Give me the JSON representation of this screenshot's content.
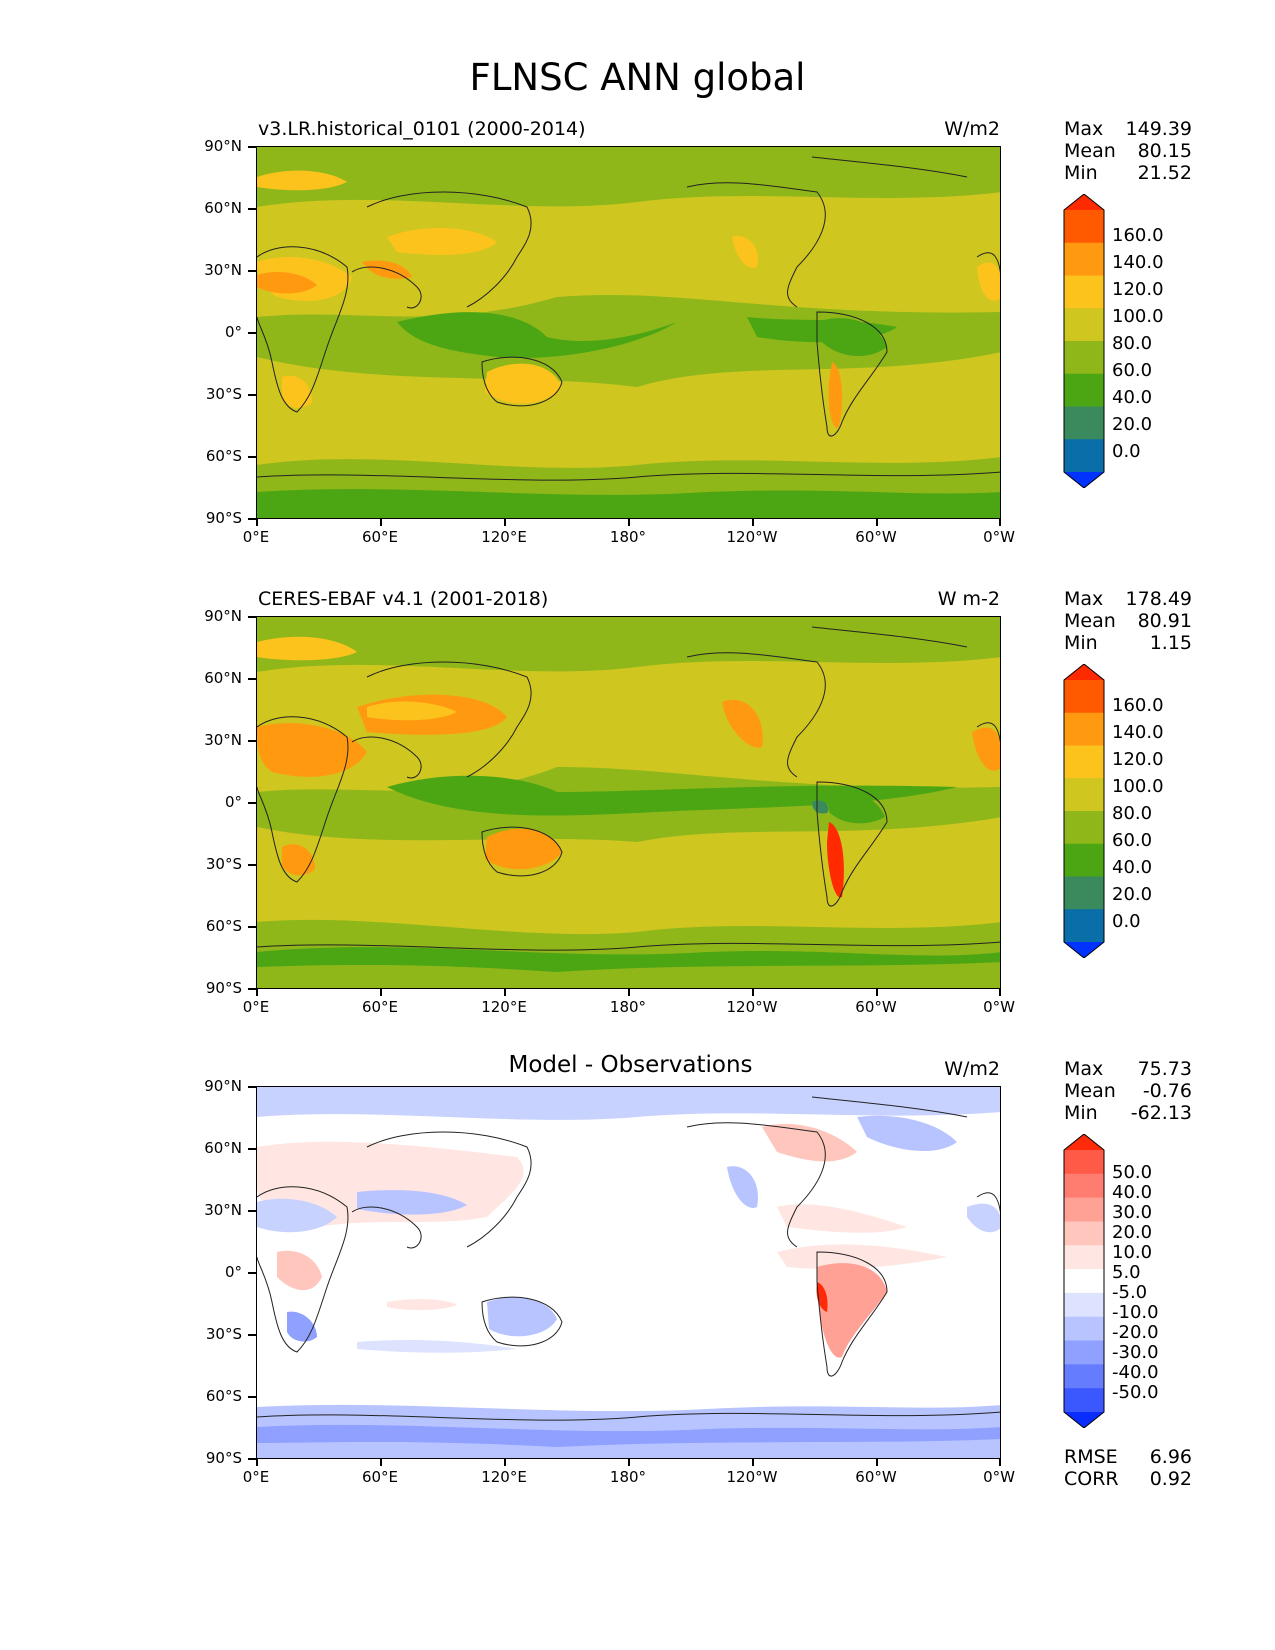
{
  "title": "FLNSC ANN global",
  "axis": {
    "lat_labels": [
      "90°N",
      "60°N",
      "30°N",
      "0°",
      "30°S",
      "60°S",
      "90°S"
    ],
    "lon_labels": [
      "0°E",
      "60°E",
      "120°E",
      "180°",
      "120°W",
      "60°W",
      "0°W"
    ]
  },
  "panels": [
    {
      "left_label": "v3.LR.historical_0101 (2000-2014)",
      "center_label": "",
      "units": "W/m2",
      "stats": [
        {
          "name": "Max",
          "value": "149.39"
        },
        {
          "name": "Mean",
          "value": "80.15"
        },
        {
          "name": "Min",
          "value": "21.52"
        }
      ],
      "colorbar": {
        "labels": [
          "160.0",
          "140.0",
          "120.0",
          "100.0",
          "80.0",
          "60.0",
          "40.0",
          "20.0",
          "0.0"
        ],
        "colors": [
          "#ff2a00",
          "#ff5a00",
          "#ff9a10",
          "#fdc31d",
          "#cfc620",
          "#8fb71a",
          "#4ca614",
          "#3b8a5e",
          "#0a6ea8",
          "#0033ff"
        ]
      }
    },
    {
      "left_label": "CERES-EBAF v4.1 (2001-2018)",
      "center_label": "",
      "units": "W m-2",
      "stats": [
        {
          "name": "Max",
          "value": "178.49"
        },
        {
          "name": "Mean",
          "value": "80.91"
        },
        {
          "name": "Min",
          "value": "1.15"
        }
      ],
      "colorbar": {
        "labels": [
          "160.0",
          "140.0",
          "120.0",
          "100.0",
          "80.0",
          "60.0",
          "40.0",
          "20.0",
          "0.0"
        ],
        "colors": [
          "#ff2a00",
          "#ff5a00",
          "#ff9a10",
          "#fdc31d",
          "#cfc620",
          "#8fb71a",
          "#4ca614",
          "#3b8a5e",
          "#0a6ea8",
          "#0033ff"
        ]
      }
    },
    {
      "left_label": "",
      "center_label": "Model - Observations",
      "units": "W/m2",
      "stats": [
        {
          "name": "Max",
          "value": "75.73"
        },
        {
          "name": "Mean",
          "value": "-0.76"
        },
        {
          "name": "Min",
          "value": "-62.13"
        }
      ],
      "colorbar": {
        "labels": [
          "50.0",
          "40.0",
          "30.0",
          "20.0",
          "10.0",
          "5.0",
          "-5.0",
          "-10.0",
          "-20.0",
          "-30.0",
          "-40.0",
          "-50.0"
        ],
        "colors": [
          "#ff2a0a",
          "#ff5a48",
          "#ff7d70",
          "#ffa195",
          "#ffc6bd",
          "#ffe6e2",
          "#ffffff",
          "#dde3ff",
          "#b8c4ff",
          "#8fa0ff",
          "#667cff",
          "#3b58ff",
          "#0a2dff"
        ]
      },
      "footer_stats": [
        {
          "name": "RMSE",
          "value": "6.96"
        },
        {
          "name": "CORR",
          "value": "0.92"
        }
      ]
    }
  ],
  "colors": {
    "ocean_mid": "#8fb71a",
    "ocean_sub": "#cfc620",
    "tropical": "#4ca614",
    "desert": "#fdc31d",
    "hot": "#ff9a10",
    "diff_background": "#ffffff",
    "diff_pos": "#ffc6bd",
    "diff_neg": "#c8d2ff"
  }
}
